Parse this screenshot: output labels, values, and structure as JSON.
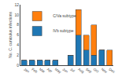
{
  "chart_data": {
    "type": "bar",
    "stacked": true,
    "categories": [
      "Jan",
      "Feb",
      "Mar",
      "Apr",
      "May",
      "Jun",
      "Jul",
      "Aug",
      "Sep",
      "Oct",
      "Nov",
      "Dec"
    ],
    "series": [
      {
        "name": "IVb subtype",
        "values": [
          1,
          1,
          1,
          1,
          1,
          0,
          2,
          6,
          3,
          2,
          3,
          0
        ]
      },
      {
        "name": "C/Va subtype",
        "values": [
          0,
          0,
          0,
          0,
          0,
          0,
          0,
          5,
          3,
          6,
          0,
          3
        ]
      }
    ],
    "ylabel": "No. C. cuniculus infections",
    "ylim": [
      0,
      12
    ],
    "yticks": [
      0,
      2,
      4,
      6,
      8,
      10,
      12
    ],
    "grid": false,
    "legend": "upper left"
  }
}
